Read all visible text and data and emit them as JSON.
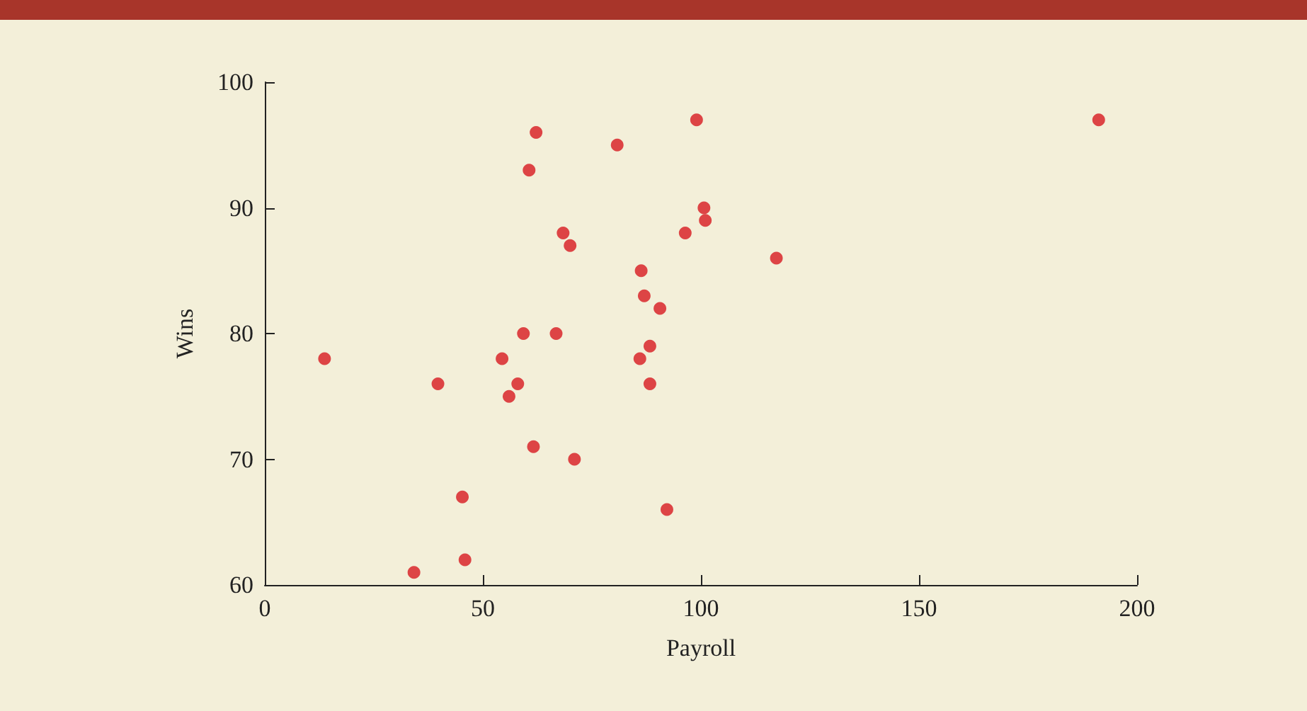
{
  "chart_data": {
    "type": "scatter",
    "xlabel": "Payroll",
    "ylabel": "Wins",
    "color": "#d7191f",
    "marker": "circle",
    "grid": false,
    "x": [
      13.7,
      34.2,
      39.7,
      45.3,
      45.9,
      54.4,
      56.0,
      58.0,
      59.3,
      60.6,
      61.6,
      62.2,
      66.8,
      68.4,
      70.0,
      71.0,
      80.8,
      86.0,
      86.3,
      87.0,
      88.3,
      88.3,
      90.6,
      92.2,
      96.4,
      99.0,
      100.7,
      101.0,
      117.3,
      191.2
    ],
    "values": [
      78,
      61,
      76,
      67,
      62,
      78,
      75,
      76,
      80,
      93,
      71,
      96,
      80,
      88,
      87,
      70,
      95,
      78,
      85,
      83,
      79,
      76,
      82,
      66,
      88,
      97,
      90,
      89,
      86,
      97
    ],
    "xlim": [
      0,
      200
    ],
    "xticks": [
      0,
      50,
      100,
      150,
      200
    ],
    "ylim": [
      60,
      100
    ],
    "yticks": [
      60,
      70,
      80,
      90,
      100
    ]
  }
}
